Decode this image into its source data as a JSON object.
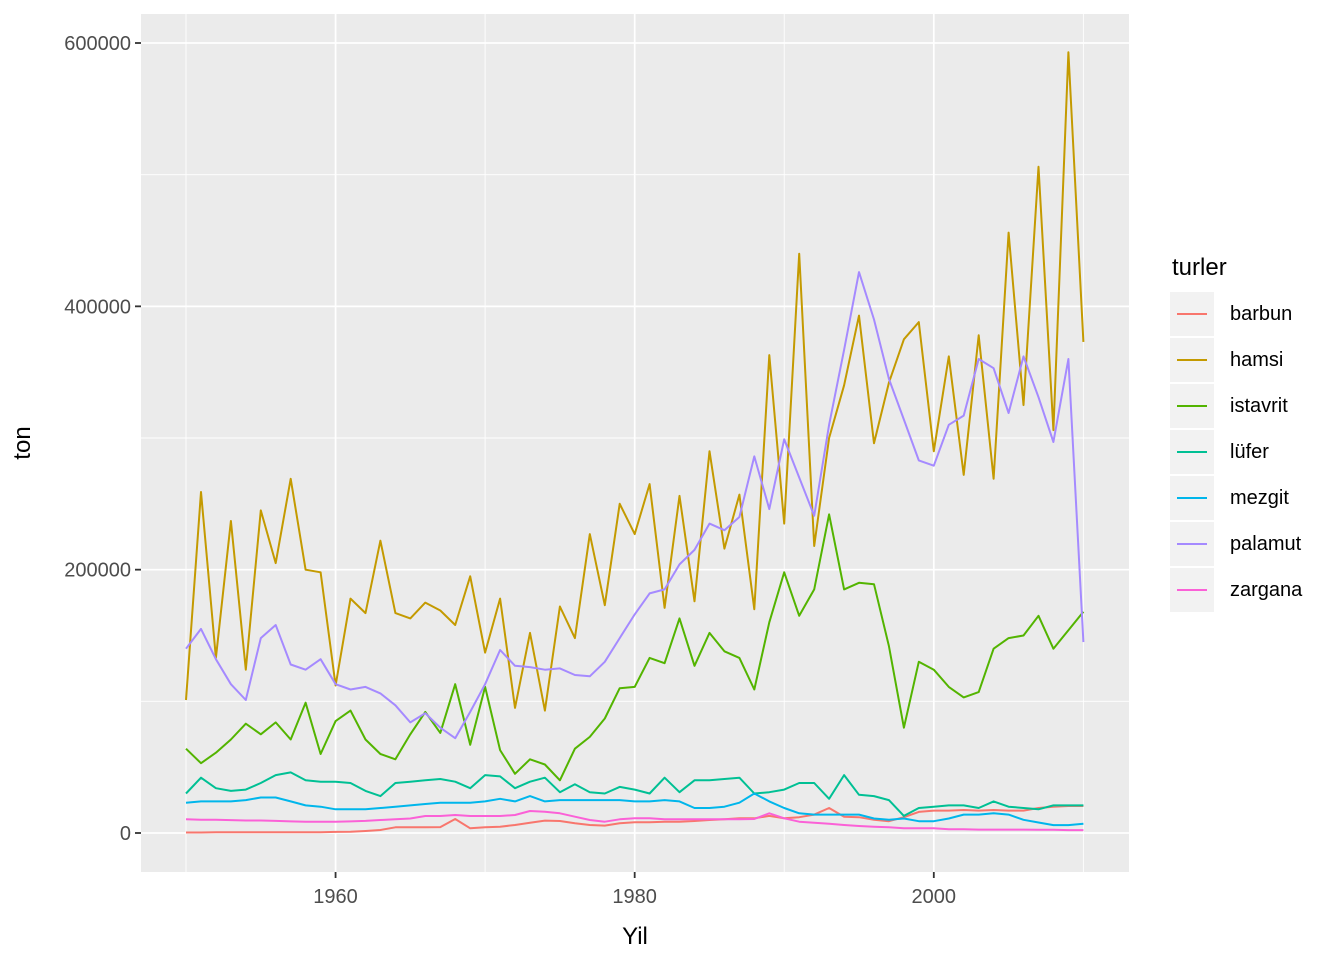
{
  "figure": {
    "x_axis_title": "Yil",
    "y_axis_title": "ton",
    "legend_title": "turler"
  },
  "colors": {
    "page_background": "#FFFFFF",
    "panel_background": "#EBEBEB",
    "gridline": "#FFFFFF",
    "axis_tick_text": "#4D4D4D",
    "tick_mark": "#333333",
    "legend_key_background": "#F2F2F2",
    "title_text": "#000000"
  },
  "chart_data": {
    "type": "line",
    "title": "",
    "xlabel": "Yil",
    "ylabel": "ton",
    "legend_title": "turler",
    "legend_position": "right",
    "grid": "on",
    "x_range": [
      1950,
      2010
    ],
    "ylim": [
      0,
      600000
    ],
    "x_axis": {
      "major_ticks": [
        1960,
        1980,
        2000
      ],
      "tick_labels": [
        "1960",
        "1980",
        "2000"
      ],
      "minor_gridlines": [
        1950,
        1970,
        1990,
        2010
      ]
    },
    "y_axis": {
      "major_ticks": [
        0,
        200000,
        400000,
        600000
      ],
      "tick_labels": [
        "0",
        "200000",
        "400000",
        "600000"
      ],
      "minor_gridlines": [
        100000,
        300000,
        500000
      ]
    },
    "years": [
      1950,
      1951,
      1952,
      1953,
      1954,
      1955,
      1956,
      1957,
      1958,
      1959,
      1960,
      1961,
      1962,
      1963,
      1964,
      1965,
      1966,
      1967,
      1968,
      1969,
      1970,
      1971,
      1972,
      1973,
      1974,
      1975,
      1976,
      1977,
      1978,
      1979,
      1980,
      1981,
      1982,
      1983,
      1984,
      1985,
      1986,
      1987,
      1988,
      1989,
      1990,
      1991,
      1992,
      1993,
      1994,
      1995,
      1996,
      1997,
      1998,
      1999,
      2000,
      2001,
      2002,
      2003,
      2004,
      2005,
      2006,
      2007,
      2008,
      2009,
      2010
    ],
    "series": [
      {
        "name": "barbun",
        "color": "#F8766D",
        "values": [
          400,
          400,
          500,
          500,
          500,
          500,
          500,
          500,
          500,
          600,
          800,
          1000,
          1500,
          2300,
          4300,
          4300,
          4300,
          4500,
          10600,
          3600,
          4300,
          4800,
          6100,
          7800,
          9400,
          9100,
          7400,
          6100,
          5600,
          7400,
          8100,
          8100,
          8600,
          8600,
          9100,
          9900,
          10400,
          11200,
          11200,
          13000,
          11200,
          12000,
          14000,
          19000,
          12400,
          12000,
          10000,
          9000,
          12000,
          16000,
          17000,
          17000,
          17500,
          17000,
          17500,
          17000,
          17000,
          19000,
          20000,
          20500,
          20500
        ]
      },
      {
        "name": "hamsi",
        "color": "#C49A00",
        "values": [
          101000,
          259000,
          133000,
          237000,
          124000,
          245000,
          205000,
          269000,
          200000,
          198000,
          112000,
          178000,
          167000,
          222000,
          167000,
          163000,
          175000,
          169000,
          158000,
          195000,
          137000,
          178000,
          95000,
          152000,
          93000,
          172000,
          148000,
          227000,
          173000,
          250000,
          227000,
          265000,
          171000,
          256000,
          176000,
          290000,
          216000,
          257000,
          170000,
          363000,
          235000,
          440000,
          218000,
          300000,
          340000,
          393000,
          296000,
          342000,
          375000,
          388000,
          290000,
          362000,
          272000,
          378000,
          269000,
          456000,
          325000,
          506000,
          306000,
          593000,
          373000
        ]
      },
      {
        "name": "istavrit",
        "color": "#53B400",
        "values": [
          64000,
          53000,
          61000,
          71000,
          83000,
          75000,
          84000,
          71000,
          99000,
          60000,
          85000,
          93000,
          71000,
          60000,
          56000,
          75000,
          92000,
          76000,
          113000,
          67000,
          111000,
          63000,
          45000,
          56000,
          52000,
          40000,
          64000,
          73000,
          87000,
          110000,
          111000,
          133000,
          129000,
          163000,
          127000,
          152000,
          138000,
          133000,
          109000,
          160000,
          198000,
          165000,
          185000,
          242000,
          185000,
          190000,
          189000,
          142000,
          80000,
          130000,
          124000,
          111000,
          103000,
          107000,
          140000,
          148000,
          150000,
          165000,
          140000,
          154000,
          168000
        ]
      },
      {
        "name": "lüfer",
        "color": "#00C094",
        "values": [
          30000,
          42000,
          34000,
          32000,
          33000,
          38000,
          44000,
          46000,
          40000,
          39000,
          39000,
          38000,
          32000,
          28000,
          38000,
          39000,
          40000,
          41000,
          39000,
          34000,
          44000,
          43000,
          34000,
          39000,
          42000,
          31000,
          37000,
          31000,
          30000,
          35000,
          33000,
          30000,
          42000,
          31000,
          40000,
          40000,
          41000,
          42000,
          30000,
          31000,
          33000,
          38000,
          38000,
          26000,
          44000,
          29000,
          28000,
          25000,
          13000,
          19000,
          20000,
          21000,
          21000,
          19000,
          24000,
          20000,
          19000,
          18000,
          21000,
          21000,
          21000
        ]
      },
      {
        "name": "mezgit",
        "color": "#00B6EB",
        "values": [
          23000,
          24000,
          24000,
          24000,
          25000,
          27000,
          27000,
          24000,
          21000,
          20000,
          18000,
          18000,
          18000,
          19000,
          20000,
          21000,
          22000,
          23000,
          23000,
          23000,
          24000,
          26000,
          24000,
          28000,
          24000,
          25000,
          25000,
          25000,
          25000,
          25000,
          24000,
          24000,
          25000,
          24000,
          19000,
          19000,
          20000,
          23000,
          30000,
          24000,
          19000,
          15000,
          14000,
          14000,
          14000,
          14000,
          11000,
          10000,
          11000,
          9000,
          9000,
          11000,
          14000,
          14000,
          15000,
          14000,
          10000,
          8000,
          6000,
          6000,
          7000
        ]
      },
      {
        "name": "palamut",
        "color": "#A58AFF",
        "values": [
          140000,
          155000,
          132000,
          113000,
          101000,
          148000,
          158000,
          128000,
          124000,
          132000,
          113000,
          109000,
          111000,
          106000,
          97000,
          84000,
          91000,
          80000,
          72000,
          92000,
          113000,
          139000,
          127000,
          126000,
          124000,
          125000,
          120000,
          119000,
          130000,
          148000,
          166000,
          182000,
          185000,
          204000,
          215000,
          235000,
          230000,
          240000,
          286000,
          246000,
          299000,
          270000,
          241000,
          310000,
          367000,
          426000,
          390000,
          345000,
          314000,
          283000,
          279000,
          310000,
          317000,
          360000,
          353000,
          319000,
          362000,
          331000,
          297000,
          360000,
          145000
        ]
      },
      {
        "name": "zargana",
        "color": "#FB61D7",
        "values": [
          10400,
          10000,
          10000,
          9800,
          9500,
          9500,
          9200,
          8800,
          8600,
          8600,
          8600,
          8800,
          9200,
          9900,
          10400,
          11000,
          12900,
          12900,
          13700,
          12900,
          12900,
          12900,
          13700,
          16700,
          16200,
          15000,
          12400,
          9900,
          8600,
          10400,
          11200,
          11200,
          10400,
          10400,
          10400,
          10400,
          10400,
          10400,
          10600,
          15000,
          11200,
          8600,
          7800,
          7000,
          6100,
          5300,
          4800,
          4300,
          3600,
          3600,
          3600,
          2800,
          2800,
          2600,
          2600,
          2600,
          2600,
          2500,
          2500,
          2200,
          2200
        ]
      }
    ]
  }
}
